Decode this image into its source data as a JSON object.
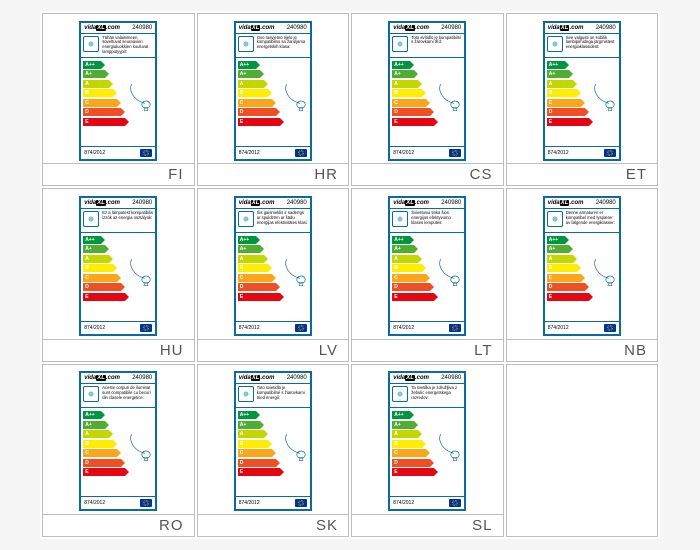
{
  "brand": "vidaXL.com",
  "product_code": "240980",
  "regulation": "874/2012",
  "energy_classes": [
    {
      "letter": "A++",
      "color": "#009640",
      "width": 18
    },
    {
      "letter": "A+",
      "color": "#4fae32",
      "width": 22
    },
    {
      "letter": "A",
      "color": "#c4d600",
      "width": 26
    },
    {
      "letter": "B",
      "color": "#ffed00",
      "width": 30
    },
    {
      "letter": "C",
      "color": "#faa61a",
      "width": 34
    },
    {
      "letter": "D",
      "color": "#f04e23",
      "width": 38
    },
    {
      "letter": "E",
      "color": "#e30613",
      "width": 42
    }
  ],
  "cells": [
    {
      "lang": "FI",
      "desc": "Tähän valaisimeen soveltuvat seuraavien energialuokkien kuuluvat lampputyypit:"
    },
    {
      "lang": "HR",
      "desc": "Ovo rasvjetno tijelo je kompatibilno sa žaruljama energetskih klasa:"
    },
    {
      "lang": "CS",
      "desc": "Toto svítidlo je kompatibilní s žárovkami tříd:"
    },
    {
      "lang": "ET",
      "desc": "See valgusti on sobilik lambipirnidega järgmistest energiaklassidest:"
    },
    {
      "lang": "HU",
      "desc": "Ez a lámpatest kompatibilis izzók az energia osztályok:"
    },
    {
      "lang": "LV",
      "desc": "Šis gaismeklis ir saderīgs ar spuldzēm ar šādu enerģijas efektivitātes klasi:"
    },
    {
      "lang": "LT",
      "desc": "Šviestuvui tinka šios energijos efektyvumo klasės lemputės:"
    },
    {
      "lang": "NB",
      "desc": "Denne armaturen er kompatibel med lyspærer av følgende energiklasser:"
    },
    {
      "lang": "RO",
      "desc": "Aceste corpuri de iluminat sunt compatibile cu becuri din clasele energetice:"
    },
    {
      "lang": "SK",
      "desc": "Toto svietidlo je kompatibilné s žiarovkami tried energií:"
    },
    {
      "lang": "SL",
      "desc": "Ta svetilka je združljiva z žebulic energetskega razredov:"
    },
    {
      "lang": "",
      "desc": "",
      "empty": true
    }
  ]
}
